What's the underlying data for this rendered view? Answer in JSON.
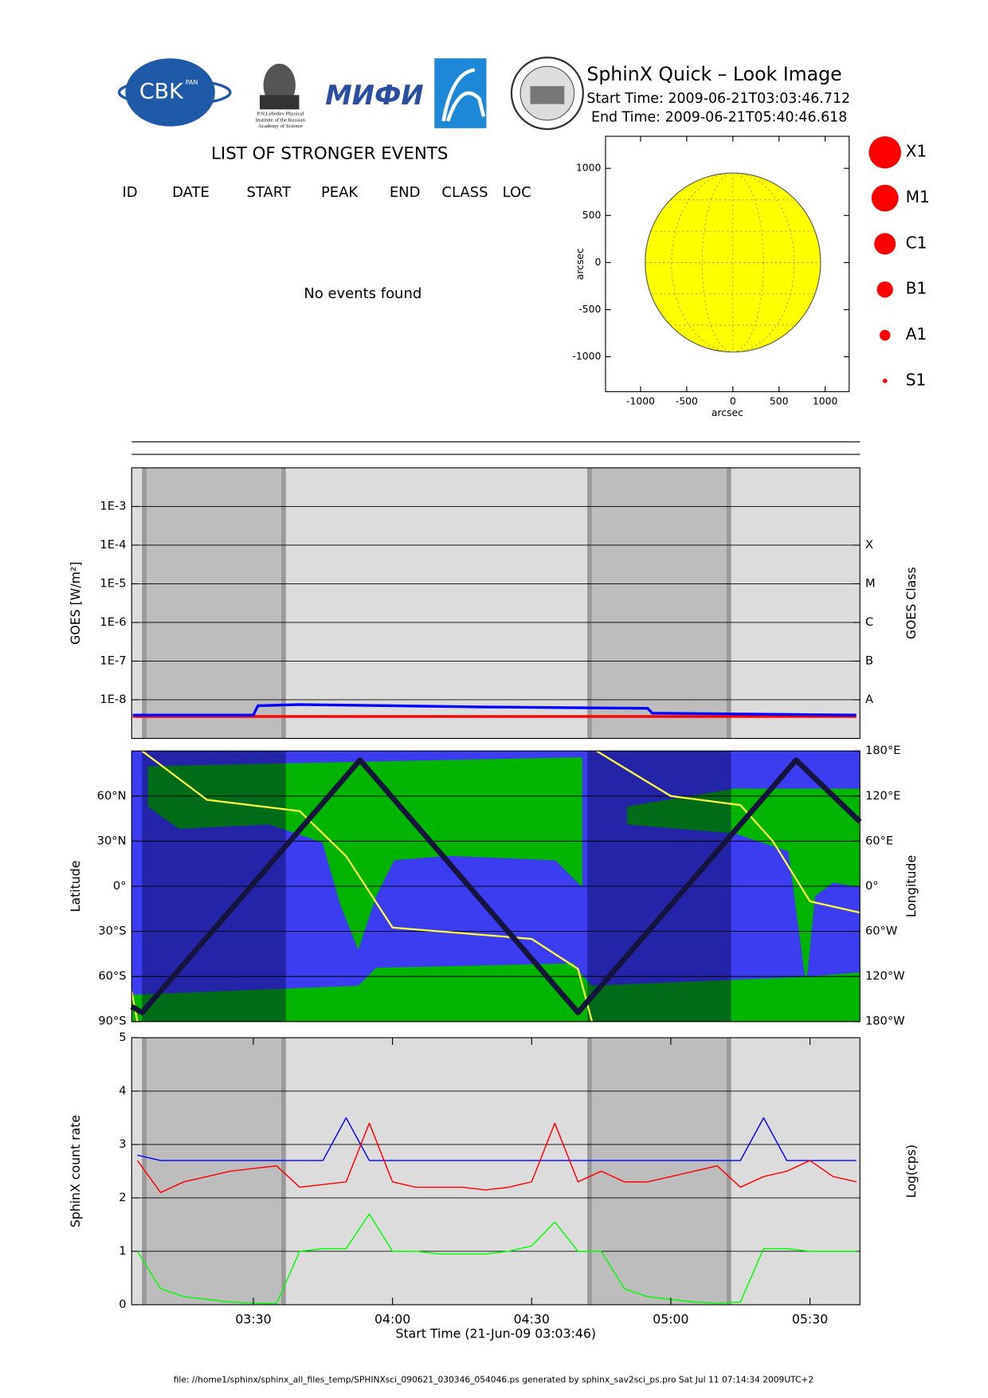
{
  "header": {
    "title": "SphinX Quick – Look Image",
    "start_time": "Start Time: 2009-06-21T03:03:46.712",
    "end_time": "End Time: 2009-06-21T05:40:46.618"
  },
  "logos": {
    "cbk": "CBK",
    "pan": "PAN",
    "lebedev": [
      "P.N.Lebedev Physical",
      "Institute of the Russian",
      "Academy of Science"
    ],
    "mephi": "МИФИ"
  },
  "events": {
    "title": "LIST OF STRONGER EVENTS",
    "columns": [
      "ID",
      "DATE",
      "START",
      "PEAK",
      "END",
      "CLASS",
      "LOC"
    ],
    "message": "No events found"
  },
  "chart_data": [
    {
      "type": "disk",
      "xlabel": "arcsec",
      "ylabel": "arcsec",
      "xlim": [
        -1380,
        1260
      ],
      "ylim": [
        -1370,
        1340
      ],
      "xticks": [
        -1000,
        -500,
        0,
        500,
        1000
      ],
      "yticks": [
        -1000,
        -500,
        0,
        500,
        1000
      ],
      "radius": 950,
      "color": "#ffff00",
      "legend": {
        "names": [
          "X1",
          "M1",
          "C1",
          "B1",
          "A1",
          "S1"
        ],
        "color": "#ff0000"
      }
    },
    {
      "type": "line",
      "ylabel": "GOES [W/m²]",
      "y2label": "GOES Class",
      "log_y": true,
      "background": "#dcdcdc",
      "shade_color": "#bdbdbd",
      "shaded_intervals": [
        [
          "03:06",
          "03:37"
        ],
        [
          "04:42",
          "05:13"
        ]
      ],
      "xlim": [
        "03:03:46",
        "05:40:46"
      ],
      "ylim": [
        1e-09,
        0.01
      ],
      "yticks": [
        {
          "value": 1e-08,
          "label": "1E-8"
        },
        {
          "value": 1e-07,
          "label": "1E-7"
        },
        {
          "value": 1e-06,
          "label": "1E-6"
        },
        {
          "value": 1e-05,
          "label": "1E-5"
        },
        {
          "value": 0.0001,
          "label": "1E-4"
        },
        {
          "value": 0.001,
          "label": "1E-3"
        }
      ],
      "y2lim": [
        1e-09,
        0.01
      ],
      "y2ticks": [
        {
          "value": 1e-08,
          "label": "A"
        },
        {
          "value": 1e-07,
          "label": "B"
        },
        {
          "value": 1e-06,
          "label": "C"
        },
        {
          "value": 1e-05,
          "label": "M"
        },
        {
          "value": 0.0001,
          "label": "X"
        }
      ],
      "grid": true,
      "x": [
        "03:04",
        "03:30",
        "03:31",
        "03:40",
        "04:00",
        "04:20",
        "04:55",
        "04:56",
        "05:40"
      ],
      "series": [
        {
          "color": "#ff0000",
          "values": [
            3.7e-09,
            3.7e-09,
            3.7e-09,
            3.7e-09,
            3.7e-09,
            3.7e-09,
            3.7e-09,
            3.7e-09,
            3.7e-09
          ]
        },
        {
          "color": "#0000ff",
          "values": [
            4e-09,
            4e-09,
            7e-09,
            7.5e-09,
            7e-09,
            6.5e-09,
            6e-09,
            4.5e-09,
            4e-09
          ]
        }
      ]
    },
    {
      "type": "track",
      "ylabel": "Latitude",
      "y2label": "Longitude",
      "background": "#3c3cf0",
      "shade_color": "rgba(0,0,60,0.4)",
      "shaded_intervals": [
        [
          "03:06",
          "03:37"
        ],
        [
          "04:42",
          "05:13"
        ]
      ],
      "xlim": [
        "03:03:46",
        "05:40:46"
      ],
      "ylim": [
        -90,
        90
      ],
      "yticks": [
        {
          "value": -90,
          "label": "90°S"
        },
        {
          "value": -60,
          "label": "60°S"
        },
        {
          "value": -30,
          "label": "30°S"
        },
        {
          "value": 0,
          "label": "0°"
        },
        {
          "value": 30,
          "label": "30°N"
        },
        {
          "value": 60,
          "label": "60°N"
        }
      ],
      "y2lim": [
        -180,
        180
      ],
      "y2ticks": [
        {
          "value": -180,
          "label": "180°W"
        },
        {
          "value": -120,
          "label": "120°W"
        },
        {
          "value": -60,
          "label": "60°W"
        },
        {
          "value": 0,
          "label": "0°"
        },
        {
          "value": 60,
          "label": "60°E"
        },
        {
          "value": 120,
          "label": "120°E"
        },
        {
          "value": 180,
          "label": "180°E"
        }
      ],
      "grid": true,
      "series": [
        {
          "color": "#ffff40",
          "axis": "y2",
          "x": [
            "03:03:46",
            "03:05",
            "03:05:30",
            "03:06",
            "03:20",
            "03:40",
            "03:50",
            "04:00",
            "04:30",
            "04:40",
            "04:43",
            "04:43:30",
            "04:44",
            "05:00",
            "05:15",
            "05:22",
            "05:30",
            "05:40:46"
          ],
          "values": [
            -140,
            -180,
            null,
            180,
            115,
            100,
            40,
            -55,
            -70,
            -110,
            -180,
            null,
            180,
            120,
            108,
            60,
            -20,
            -35
          ]
        },
        {
          "color": "#14143c",
          "x": [
            "03:03:46",
            "03:06",
            "03:53",
            "04:40",
            "05:27",
            "05:40:46"
          ],
          "values": [
            -80,
            -84,
            84,
            -84,
            84,
            43
          ]
        }
      ]
    },
    {
      "type": "line",
      "xlabel": "Start Time (21-Jun-09 03:03:46)",
      "ylabel": "SphinX count rate",
      "y2label": "Log(cps)",
      "background": "#dcdcdc",
      "shade_color": "#bdbdbd",
      "shaded_intervals": [
        [
          "03:06",
          "03:37"
        ],
        [
          "04:42",
          "05:13"
        ]
      ],
      "xlim": [
        "03:03:46",
        "05:40:46"
      ],
      "xticks": [
        "03:30",
        "04:00",
        "04:30",
        "05:00",
        "05:30"
      ],
      "ylim": [
        0,
        5
      ],
      "yticks": [
        0,
        1,
        2,
        3,
        4,
        5
      ],
      "grid": true,
      "x": [
        "03:05",
        "03:10",
        "03:15",
        "03:20",
        "03:25",
        "03:30",
        "03:35",
        "03:40",
        "03:45",
        "03:50",
        "03:55",
        "04:00",
        "04:05",
        "04:10",
        "04:15",
        "04:20",
        "04:25",
        "04:30",
        "04:35",
        "04:40",
        "04:45",
        "04:50",
        "04:55",
        "05:00",
        "05:05",
        "05:10",
        "05:15",
        "05:20",
        "05:25",
        "05:30",
        "05:35",
        "05:40"
      ],
      "series": [
        {
          "color": "#0000ff",
          "values": [
            2.8,
            2.7,
            2.7,
            2.7,
            2.7,
            2.7,
            2.7,
            2.7,
            2.7,
            3.5,
            2.7,
            2.7,
            2.7,
            2.7,
            2.7,
            2.7,
            2.7,
            2.7,
            2.7,
            2.7,
            2.7,
            2.7,
            2.7,
            2.7,
            2.7,
            2.7,
            2.7,
            3.5,
            2.7,
            2.7,
            2.7,
            2.7
          ]
        },
        {
          "color": "#ff0000",
          "values": [
            2.7,
            2.1,
            2.3,
            2.4,
            2.5,
            2.55,
            2.6,
            2.2,
            2.25,
            2.3,
            3.4,
            2.3,
            2.2,
            2.2,
            2.2,
            2.15,
            2.2,
            2.3,
            3.4,
            2.3,
            2.5,
            2.3,
            2.3,
            2.4,
            2.5,
            2.6,
            2.2,
            2.4,
            2.5,
            2.7,
            2.4,
            2.3
          ]
        },
        {
          "color": "#00ff00",
          "values": [
            1.0,
            0.3,
            0.15,
            0.1,
            0.05,
            0.03,
            0.02,
            1.0,
            1.05,
            1.05,
            1.7,
            1.0,
            1.0,
            0.95,
            0.95,
            0.95,
            1.0,
            1.1,
            1.55,
            1.0,
            1.0,
            0.3,
            0.15,
            0.1,
            0.05,
            0.03,
            0.05,
            1.05,
            1.05,
            1.0,
            1.0,
            1.0
          ]
        }
      ]
    }
  ],
  "footer": "file: //home1/sphinx/sphinx_all_files_temp/SPHINXsci_090621_030346_054046.ps generated by sphinx_sav2sci_ps.pro Sat Jul 11 07:14:34 2009UTC+2"
}
